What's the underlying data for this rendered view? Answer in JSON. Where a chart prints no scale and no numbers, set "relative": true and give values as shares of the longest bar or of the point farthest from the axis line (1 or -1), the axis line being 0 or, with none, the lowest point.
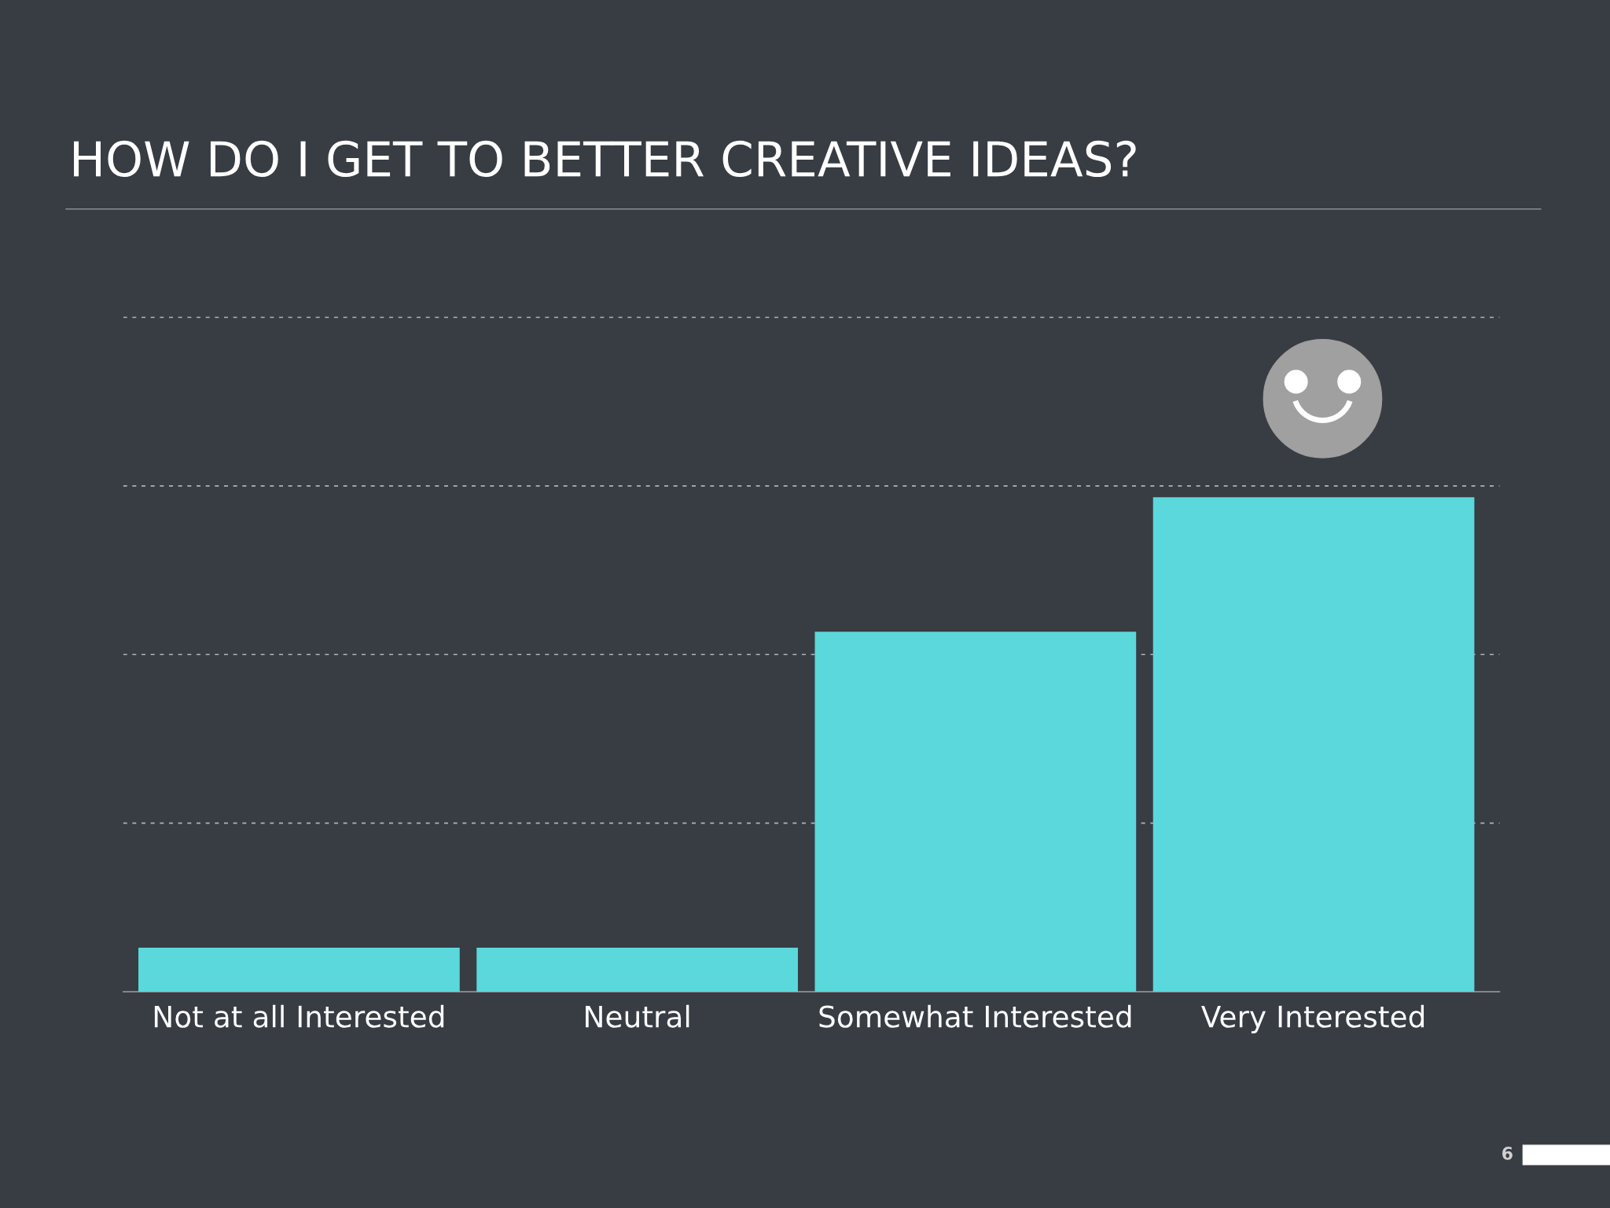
{
  "chart_data": {
    "type": "bar",
    "title": "HOW DO I GET TO BETTER CREATIVE IDEAS?",
    "categories": [
      "Not at all Interested",
      "Neutral",
      "Somewhat Interested",
      "Very Interested"
    ],
    "values": [
      0.089,
      0.089,
      0.728,
      1
    ],
    "color": "#5ad8db",
    "relative": true,
    "ref_lines": [
      {
        "axis": "y",
        "value": 0.341,
        "color": "#b0b3b8",
        "line_style": "dashed"
      },
      {
        "axis": "y",
        "value": 0.682,
        "color": "#b0b3b8",
        "line_style": "dashed"
      },
      {
        "axis": "y",
        "value": 1.023,
        "color": "#b0b3b8",
        "line_style": "dashed"
      },
      {
        "axis": "y",
        "value": 1.364,
        "color": "#b0b3b8",
        "line_style": "dashed"
      }
    ],
    "annotations": [
      "6"
    ]
  }
}
